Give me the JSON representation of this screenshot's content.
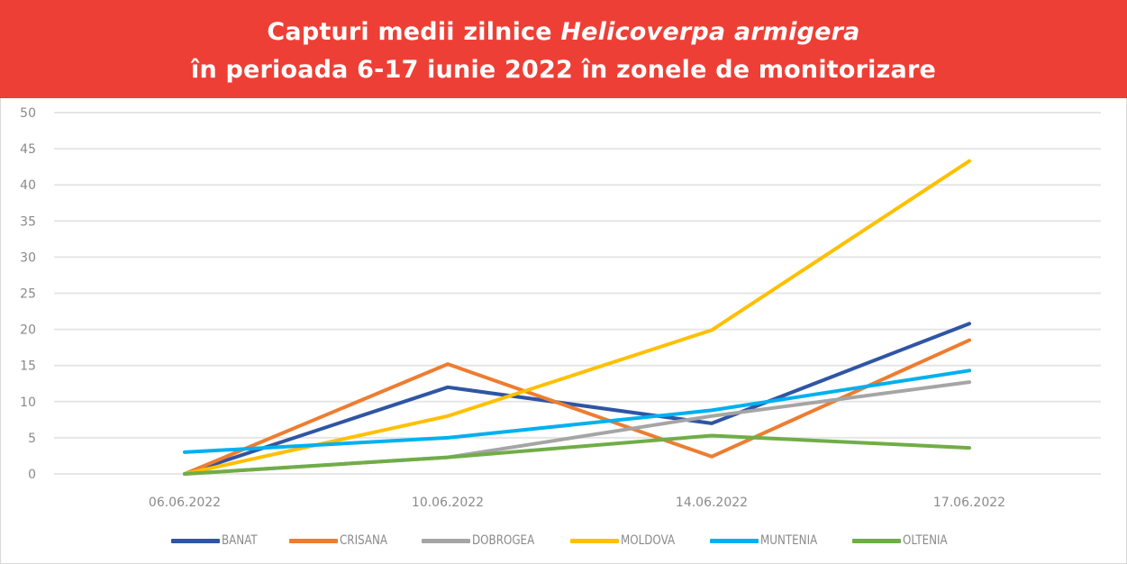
{
  "header": {
    "title_line1_a": "Capturi medii zilnice ",
    "title_line1_b": "Helicoverpa armigera",
    "title_line2": "în perioada 6-17 iunie 2022 în zonele de monitorizare",
    "background_color": "#ee3f36"
  },
  "chart_data": {
    "type": "line",
    "title": "Capturi medii zilnice Helicoverpa armigera în perioada 6-17 iunie 2022 în zonele de monitorizare",
    "xlabel": "",
    "ylabel": "",
    "categories": [
      "06.06.2022",
      "10.06.2022",
      "14.06.2022",
      "17.06.2022"
    ],
    "y_ticks": [
      0,
      5,
      10,
      15,
      20,
      25,
      30,
      35,
      40,
      45,
      50
    ],
    "ylim": [
      0,
      50
    ],
    "grid": true,
    "legend_position": "bottom",
    "series": [
      {
        "name": "BANAT",
        "color": "#2f55a4",
        "values": [
          0,
          12,
          7,
          20.8
        ]
      },
      {
        "name": "CRISANA",
        "color": "#ed7d31",
        "values": [
          0,
          15.2,
          2.4,
          18.5
        ]
      },
      {
        "name": "DOBROGEA",
        "color": "#a5a5a5",
        "values": [
          0,
          2.3,
          8,
          12.7
        ]
      },
      {
        "name": "MOLDOVA",
        "color": "#ffc000",
        "values": [
          0,
          8,
          19.9,
          43.3
        ]
      },
      {
        "name": "MUNTENIA",
        "color": "#00b0f0",
        "values": [
          3,
          5,
          8.8,
          14.3
        ]
      },
      {
        "name": "OLTENIA",
        "color": "#70ad47",
        "values": [
          0,
          2.3,
          5.3,
          3.6
        ]
      }
    ]
  }
}
